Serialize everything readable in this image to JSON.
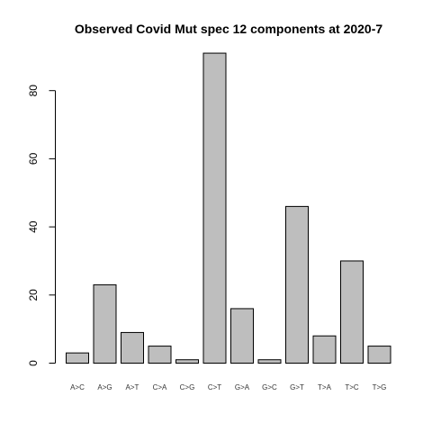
{
  "chart_data": {
    "type": "bar",
    "title": "Observed Covid Mut spec 12 components at 2020-7",
    "xlabel": "",
    "ylabel": "",
    "categories": [
      "A>C",
      "A>G",
      "A>T",
      "C>A",
      "C>G",
      "C>T",
      "G>A",
      "G>C",
      "G>T",
      "T>A",
      "T>C",
      "T>G"
    ],
    "values": [
      3,
      23,
      9,
      5,
      1,
      91,
      16,
      1,
      46,
      8,
      30,
      5
    ],
    "ylim": [
      0,
      90
    ],
    "yticks": [
      0,
      20,
      40,
      60,
      80
    ],
    "grid": false,
    "bar_color": "#bebebe",
    "border_color": "#000000"
  }
}
